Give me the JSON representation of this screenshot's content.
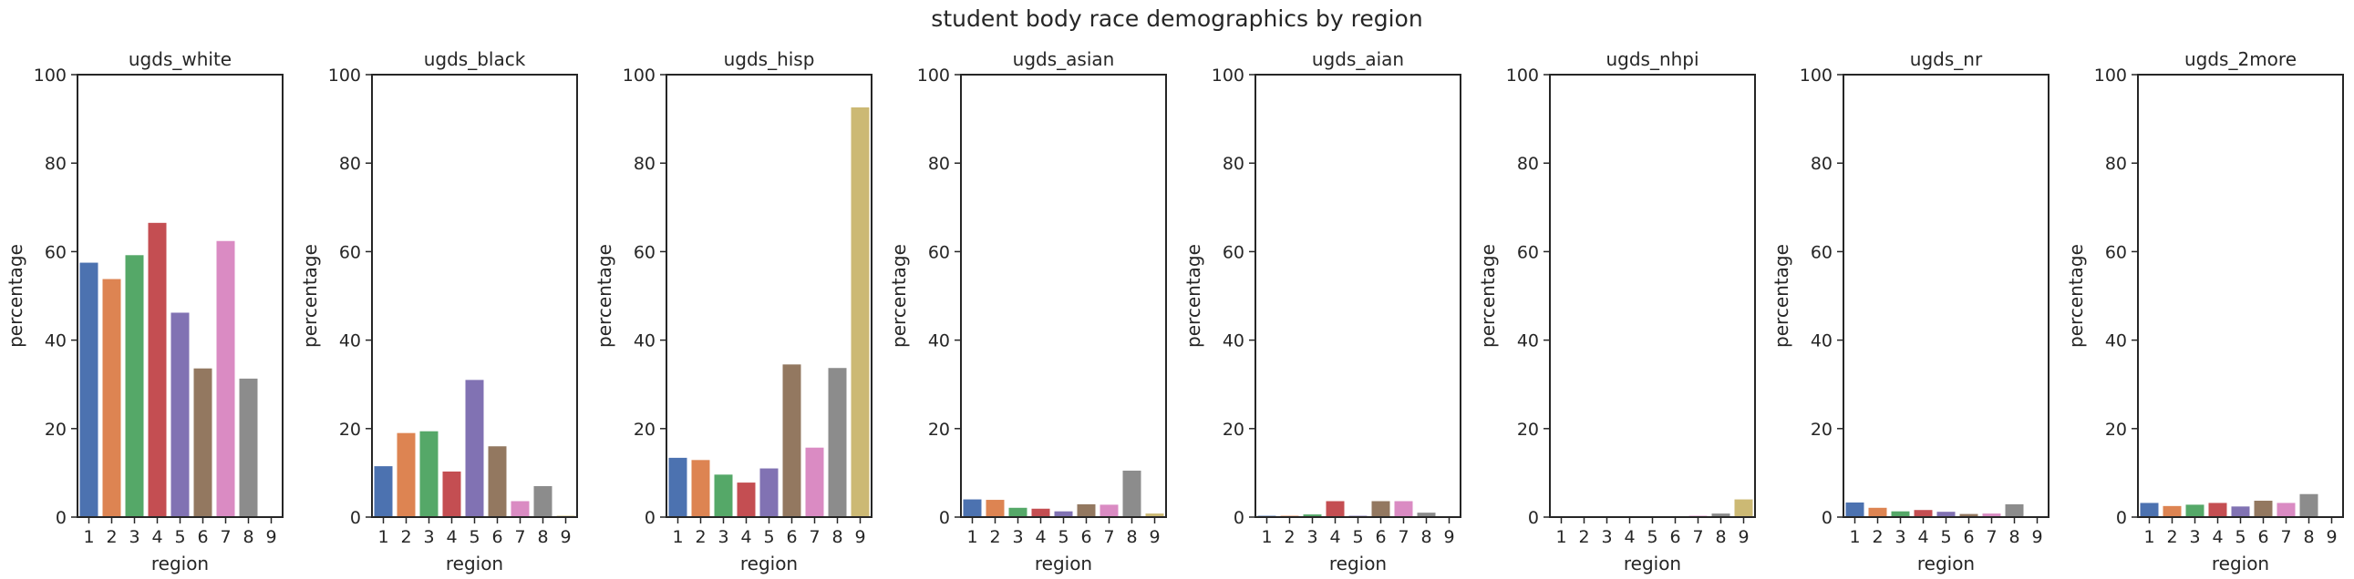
{
  "figure": {
    "title": "student body race demographics by region"
  },
  "colors": [
    "#4c72b0",
    "#dd8452",
    "#55a868",
    "#c44e52",
    "#8172b3",
    "#937860",
    "#da8bc3",
    "#8c8c8c",
    "#ccb974"
  ],
  "chart_data": [
    {
      "type": "bar",
      "title": "ugds_white",
      "xlabel": "region",
      "ylabel": "percentage",
      "categories": [
        "1",
        "2",
        "3",
        "4",
        "5",
        "6",
        "7",
        "8",
        "9"
      ],
      "values": [
        57.5,
        53.8,
        59.2,
        66.5,
        46.2,
        33.6,
        62.4,
        31.3,
        0
      ],
      "ylim": [
        0,
        100
      ],
      "yticks": [
        0,
        20,
        40,
        60,
        80,
        100
      ],
      "grid": false
    },
    {
      "type": "bar",
      "title": "ugds_black",
      "xlabel": "region",
      "ylabel": "percentage",
      "categories": [
        "1",
        "2",
        "3",
        "4",
        "5",
        "6",
        "7",
        "8",
        "9"
      ],
      "values": [
        11.5,
        19.0,
        19.4,
        10.3,
        31.0,
        16.0,
        3.6,
        7.0,
        0.3
      ],
      "ylim": [
        0,
        100
      ],
      "yticks": [
        0,
        20,
        40,
        60,
        80,
        100
      ],
      "grid": false
    },
    {
      "type": "bar",
      "title": "ugds_hisp",
      "xlabel": "region",
      "ylabel": "percentage",
      "categories": [
        "1",
        "2",
        "3",
        "4",
        "5",
        "6",
        "7",
        "8",
        "9"
      ],
      "values": [
        13.4,
        12.9,
        9.6,
        7.8,
        11.0,
        34.5,
        15.7,
        33.7,
        92.6
      ],
      "ylim": [
        0,
        100
      ],
      "yticks": [
        0,
        20,
        40,
        60,
        80,
        100
      ],
      "grid": false
    },
    {
      "type": "bar",
      "title": "ugds_asian",
      "xlabel": "region",
      "ylabel": "percentage",
      "categories": [
        "1",
        "2",
        "3",
        "4",
        "5",
        "6",
        "7",
        "8",
        "9"
      ],
      "values": [
        4.0,
        3.9,
        2.1,
        1.9,
        1.3,
        2.9,
        2.8,
        10.5,
        0.8
      ],
      "ylim": [
        0,
        100
      ],
      "yticks": [
        0,
        20,
        40,
        60,
        80,
        100
      ],
      "grid": false
    },
    {
      "type": "bar",
      "title": "ugds_aian",
      "xlabel": "region",
      "ylabel": "percentage",
      "categories": [
        "1",
        "2",
        "3",
        "4",
        "5",
        "6",
        "7",
        "8",
        "9"
      ],
      "values": [
        0.3,
        0.3,
        0.6,
        3.6,
        0.3,
        3.6,
        3.6,
        1.0,
        0.1
      ],
      "ylim": [
        0,
        100
      ],
      "yticks": [
        0,
        20,
        40,
        60,
        80,
        100
      ],
      "grid": false
    },
    {
      "type": "bar",
      "title": "ugds_nhpi",
      "xlabel": "region",
      "ylabel": "percentage",
      "categories": [
        "1",
        "2",
        "3",
        "4",
        "5",
        "6",
        "7",
        "8",
        "9"
      ],
      "values": [
        0.1,
        0.1,
        0.1,
        0.1,
        0.1,
        0.1,
        0.3,
        0.8,
        4.0
      ],
      "ylim": [
        0,
        100
      ],
      "yticks": [
        0,
        20,
        40,
        60,
        80,
        100
      ],
      "grid": false
    },
    {
      "type": "bar",
      "title": "ugds_nr",
      "xlabel": "region",
      "ylabel": "percentage",
      "categories": [
        "1",
        "2",
        "3",
        "4",
        "5",
        "6",
        "7",
        "8",
        "9"
      ],
      "values": [
        3.3,
        2.1,
        1.3,
        1.6,
        1.2,
        0.7,
        0.8,
        2.9,
        0
      ],
      "ylim": [
        0,
        100
      ],
      "yticks": [
        0,
        20,
        40,
        60,
        80,
        100
      ],
      "grid": false
    },
    {
      "type": "bar",
      "title": "ugds_2more",
      "xlabel": "region",
      "ylabel": "percentage",
      "categories": [
        "1",
        "2",
        "3",
        "4",
        "5",
        "6",
        "7",
        "8",
        "9"
      ],
      "values": [
        3.2,
        2.5,
        2.8,
        3.2,
        2.4,
        3.7,
        3.2,
        5.2,
        0
      ],
      "ylim": [
        0,
        100
      ],
      "yticks": [
        0,
        20,
        40,
        60,
        80,
        100
      ],
      "grid": false
    }
  ]
}
